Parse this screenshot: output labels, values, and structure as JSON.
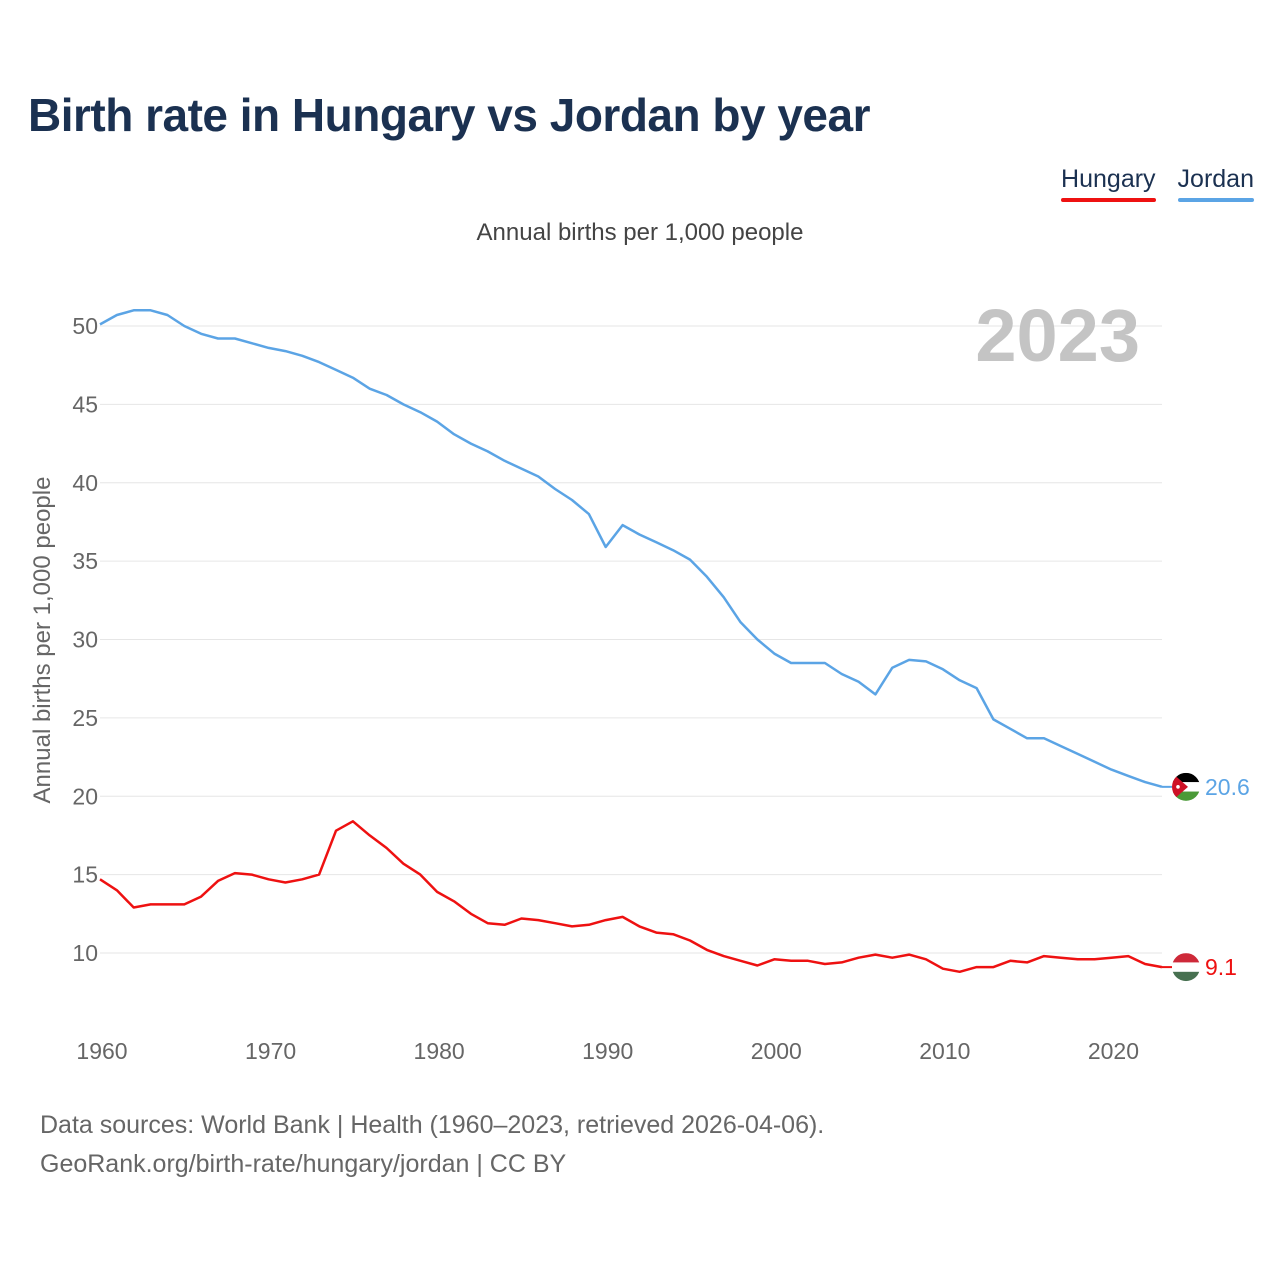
{
  "title": "Birth rate in Hungary vs Jordan by year",
  "legend": [
    {
      "label": "Hungary",
      "color": "#ee1111"
    },
    {
      "label": "Jordan",
      "color": "#5ba4e5"
    }
  ],
  "footer": {
    "line1": "Data sources: World Bank | Health (1960–2023, retrieved 2026-04-06).",
    "line2": "GeoRank.org/birth-rate/hungary/jordan | CC BY"
  },
  "chart_data": {
    "type": "line",
    "title": "Birth rate in Hungary vs Jordan by year",
    "subtitle": "Annual births per 1,000 people",
    "xlabel": "",
    "ylabel": "Annual births per 1,000 people",
    "year_label": "2023",
    "xlim": [
      1960,
      2023
    ],
    "ylim": [
      6,
      52
    ],
    "x_ticks": [
      1960,
      1970,
      1980,
      1990,
      2000,
      2010,
      2020
    ],
    "y_ticks": [
      10,
      15,
      20,
      25,
      30,
      35,
      40,
      45,
      50
    ],
    "grid": true,
    "x": [
      1960,
      1961,
      1962,
      1963,
      1964,
      1965,
      1966,
      1967,
      1968,
      1969,
      1970,
      1971,
      1972,
      1973,
      1974,
      1975,
      1976,
      1977,
      1978,
      1979,
      1980,
      1981,
      1982,
      1983,
      1984,
      1985,
      1986,
      1987,
      1988,
      1989,
      1990,
      1991,
      1992,
      1993,
      1994,
      1995,
      1996,
      1997,
      1998,
      1999,
      2000,
      2001,
      2002,
      2003,
      2004,
      2005,
      2006,
      2007,
      2008,
      2009,
      2010,
      2011,
      2012,
      2013,
      2014,
      2015,
      2016,
      2017,
      2018,
      2019,
      2020,
      2021,
      2022,
      2023
    ],
    "series": [
      {
        "name": "Jordan",
        "color": "#5ba4e5",
        "end_label": "20.6",
        "values": [
          50.1,
          50.7,
          51.0,
          51.0,
          50.7,
          50.0,
          49.5,
          49.2,
          49.2,
          48.9,
          48.6,
          48.4,
          48.1,
          47.7,
          47.2,
          46.7,
          46.0,
          45.6,
          45.0,
          44.5,
          43.9,
          43.1,
          42.5,
          42.0,
          41.4,
          40.9,
          40.4,
          39.6,
          38.9,
          38.0,
          35.9,
          37.3,
          36.7,
          36.2,
          35.7,
          35.1,
          34.0,
          32.7,
          31.1,
          30.0,
          29.1,
          28.5,
          28.5,
          28.5,
          27.8,
          27.3,
          26.5,
          28.2,
          28.7,
          28.6,
          28.1,
          27.4,
          26.9,
          24.9,
          24.3,
          23.7,
          23.7,
          23.2,
          22.7,
          22.2,
          21.7,
          21.3,
          20.9,
          20.6
        ]
      },
      {
        "name": "Hungary",
        "color": "#ee1111",
        "end_label": "9.1",
        "values": [
          14.7,
          14.0,
          12.9,
          13.1,
          13.1,
          13.1,
          13.6,
          14.6,
          15.1,
          15.0,
          14.7,
          14.5,
          14.7,
          15.0,
          17.8,
          18.4,
          17.5,
          16.7,
          15.7,
          15.0,
          13.9,
          13.3,
          12.5,
          11.9,
          11.8,
          12.2,
          12.1,
          11.9,
          11.7,
          11.8,
          12.1,
          12.3,
          11.7,
          11.3,
          11.2,
          10.8,
          10.2,
          9.8,
          9.5,
          9.2,
          9.6,
          9.5,
          9.5,
          9.3,
          9.4,
          9.7,
          9.9,
          9.7,
          9.9,
          9.6,
          9.0,
          8.8,
          9.1,
          9.1,
          9.5,
          9.4,
          9.8,
          9.7,
          9.6,
          9.6,
          9.7,
          9.8,
          9.3,
          9.1
        ]
      }
    ]
  }
}
